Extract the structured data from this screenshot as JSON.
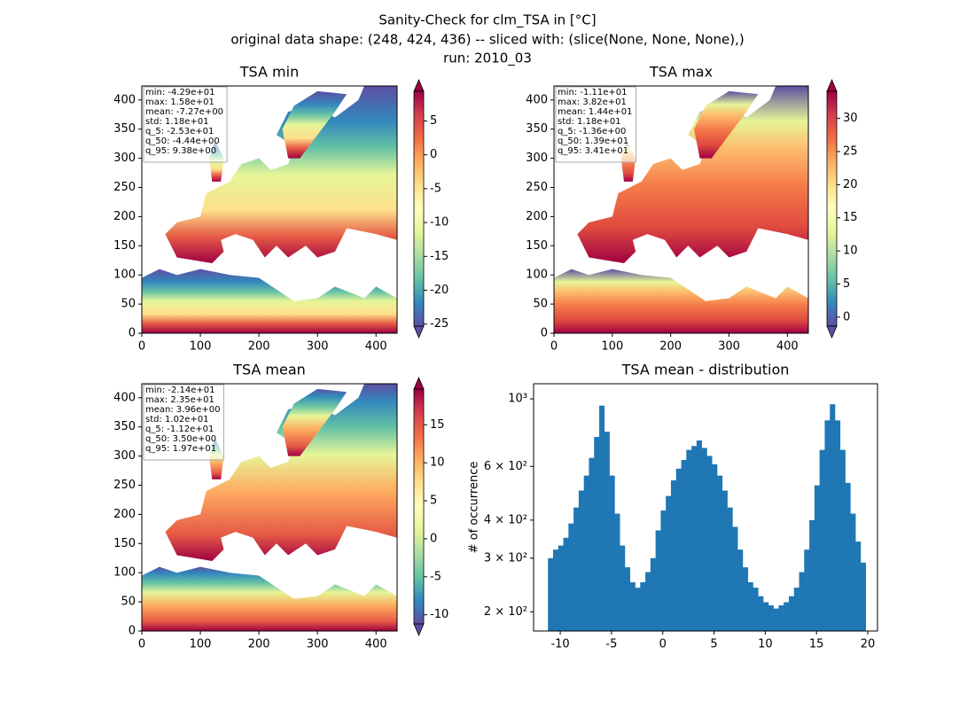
{
  "suptitle": [
    "Sanity-Check for clm_TSA in [°C]",
    "original data shape: (248, 424, 436) -- sliced with: (slice(None, None, None),)",
    "run: 2010_03"
  ],
  "chart_data": [
    {
      "type": "heatmap",
      "title": "TSA min",
      "xlim": [
        0,
        436
      ],
      "ylim": [
        0,
        424
      ],
      "xticks": [
        0,
        100,
        200,
        300,
        400
      ],
      "yticks": [
        0,
        50,
        100,
        150,
        200,
        250,
        300,
        350,
        400
      ],
      "colorbar_lim": [
        -25.3,
        9.38
      ],
      "colorbar_ticks": [
        -25,
        -20,
        -15,
        -10,
        -5,
        0,
        5
      ],
      "colormap": "Spectral_r",
      "stats": [
        "min: -4.29e+01",
        "max: 1.58e+01",
        "mean: -7.27e+00",
        "std: 1.18e+01",
        "q_5: -2.53e+01",
        "q_50: -4.44e+00",
        "q_95: 9.38e+00"
      ]
    },
    {
      "type": "heatmap",
      "title": "TSA max",
      "xlim": [
        0,
        436
      ],
      "ylim": [
        0,
        424
      ],
      "xticks": [
        0,
        100,
        200,
        300,
        400
      ],
      "yticks": [
        0,
        50,
        100,
        150,
        200,
        250,
        300,
        350,
        400
      ],
      "colorbar_lim": [
        -1.36,
        34.1
      ],
      "colorbar_ticks": [
        0,
        5,
        10,
        15,
        20,
        25,
        30
      ],
      "colormap": "Spectral_r",
      "stats": [
        "min: -1.11e+01",
        "max: 3.82e+01",
        "mean: 1.44e+01",
        "std: 1.18e+01",
        "q_5: -1.36e+00",
        "q_50: 1.39e+01",
        "q_95: 3.41e+01"
      ]
    },
    {
      "type": "heatmap",
      "title": "TSA mean",
      "xlim": [
        0,
        436
      ],
      "ylim": [
        0,
        424
      ],
      "xticks": [
        0,
        100,
        200,
        300,
        400
      ],
      "yticks": [
        0,
        50,
        100,
        150,
        200,
        250,
        300,
        350,
        400
      ],
      "colorbar_lim": [
        -11.2,
        19.7
      ],
      "colorbar_ticks": [
        -10,
        -5,
        0,
        5,
        10,
        15
      ],
      "colormap": "Spectral_r",
      "stats": [
        "min: -2.14e+01",
        "max: 2.35e+01",
        "mean: 3.96e+00",
        "std: 1.02e+01",
        "q_5: -1.12e+01",
        "q_50: 3.50e+00",
        "q_95: 1.97e+01"
      ]
    },
    {
      "type": "histogram",
      "title": "TSA mean - distribution",
      "ylabel": "# of occurrence",
      "color": "#1f77b4",
      "log_y": true,
      "xlim": [
        -12.6,
        20.95
      ],
      "xticks": [
        -10,
        -5,
        0,
        5,
        10,
        15,
        20
      ],
      "ylim": [
        173,
        1121
      ],
      "yticks": [
        {
          "value": 200,
          "label": "2 × 10²"
        },
        {
          "value": 300,
          "label": "3 × 10²"
        },
        {
          "value": 400,
          "label": "4 × 10²"
        },
        {
          "value": 600,
          "label": "6 × 10²"
        },
        {
          "value": 1000,
          "label": "10³"
        }
      ],
      "bins": [
        -11.2,
        -10.7,
        -10.2,
        -9.7,
        -9.2,
        -8.7,
        -8.2,
        -7.7,
        -7.2,
        -6.7,
        -6.2,
        -5.7,
        -5.2,
        -4.7,
        -4.2,
        -3.7,
        -3.2,
        -2.7,
        -2.2,
        -1.7,
        -1.2,
        -0.7,
        -0.2,
        0.3,
        0.8,
        1.3,
        1.8,
        2.3,
        2.8,
        3.3,
        3.8,
        4.3,
        4.8,
        5.3,
        5.8,
        6.3,
        6.8,
        7.3,
        7.8,
        8.3,
        8.8,
        9.3,
        9.8,
        10.3,
        10.8,
        11.3,
        11.8,
        12.3,
        12.8,
        13.3,
        13.8,
        14.3,
        14.8,
        15.3,
        15.8,
        16.3,
        16.8,
        17.3,
        17.8,
        18.3,
        18.8,
        19.3,
        19.8
      ],
      "values": [
        300,
        320,
        330,
        350,
        390,
        440,
        500,
        560,
        640,
        750,
        950,
        780,
        560,
        420,
        330,
        280,
        250,
        240,
        250,
        270,
        300,
        370,
        430,
        480,
        540,
        590,
        630,
        680,
        700,
        730,
        690,
        650,
        610,
        560,
        500,
        440,
        380,
        320,
        280,
        250,
        240,
        225,
        215,
        210,
        205,
        210,
        215,
        225,
        240,
        270,
        320,
        400,
        520,
        680,
        850,
        960,
        850,
        680,
        530,
        420,
        340,
        290
      ]
    }
  ]
}
